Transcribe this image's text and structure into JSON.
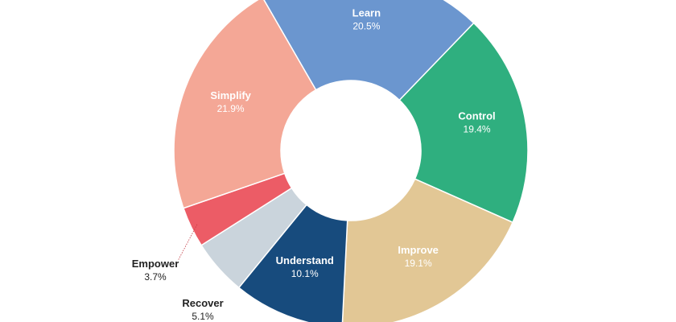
{
  "chart_data": {
    "type": "pie",
    "variant": "donut",
    "categories": [
      "Learn",
      "Control",
      "Improve",
      "Understand",
      "Recover",
      "Empower",
      "Simplify"
    ],
    "values": [
      20.5,
      19.4,
      19.1,
      10.1,
      5.1,
      3.7,
      21.9
    ],
    "value_labels": [
      "20.5%",
      "19.4%",
      "19.1%",
      "10.1%",
      "5.1%",
      "3.7%",
      "21.9%"
    ],
    "colors": [
      "#6b96cf",
      "#2faf7f",
      "#e2c795",
      "#174b7d",
      "#cad4dc",
      "#ec5c66",
      "#f4a796"
    ],
    "label_colors": [
      "#ffffff",
      "#ffffff",
      "#ffffff",
      "#ffffff",
      "#222222",
      "#222222",
      "#ffffff"
    ],
    "outside_labels": [
      "Recover",
      "Empower"
    ],
    "title": "",
    "legend": "none"
  }
}
